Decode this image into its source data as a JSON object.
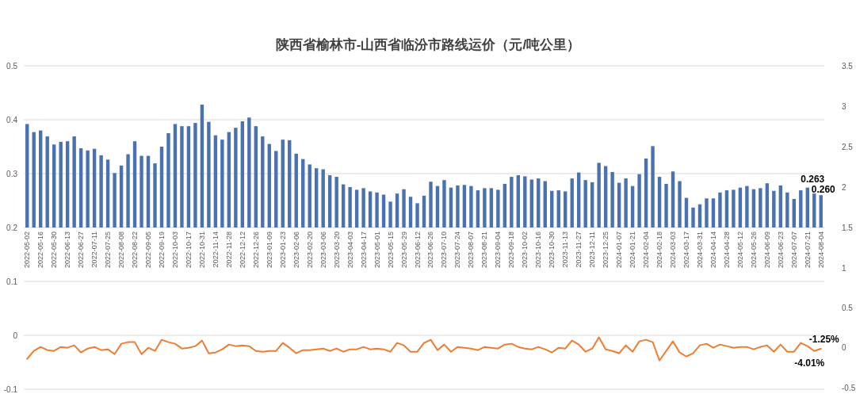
{
  "chart_data": [
    {
      "type": "bar",
      "title": "陕西省榆林市-山西省临汾市路线运价（元/吨公里）",
      "categories": [
        "2022-05-02",
        null,
        "2022-05-16",
        null,
        "2022-05-30",
        null,
        "2022-06-13",
        null,
        "2022-06-27",
        null,
        "2022-07-11",
        null,
        "2022-07-25",
        null,
        "2022-08-08",
        null,
        "2022-08-22",
        null,
        "2022-09-05",
        null,
        "2022-09-19",
        null,
        "2022-10-03",
        null,
        "2022-10-17",
        null,
        "2022-10-31",
        null,
        "2022-11-14",
        null,
        "2022-11-28",
        null,
        "2022-12-12",
        null,
        "2022-12-26",
        null,
        "2023-01-09",
        null,
        "2023-01-23",
        null,
        "2023-02-06",
        null,
        "2023-02-20",
        null,
        "2023-03-06",
        null,
        "2023-03-20",
        null,
        "2023-04-03",
        null,
        "2023-04-17",
        null,
        "2023-05-01",
        null,
        "2023-05-15",
        null,
        "2023-05-29",
        null,
        "2023-06-12",
        null,
        "2023-06-26",
        null,
        "2023-07-10",
        null,
        "2023-07-24",
        null,
        "2023-08-07",
        null,
        "2023-08-21",
        null,
        "2023-09-04",
        null,
        "2023-09-18",
        null,
        "2023-10-02",
        null,
        "2023-10-16",
        null,
        "2023-10-30",
        null,
        "2023-11-13",
        null,
        "2023-11-27",
        null,
        "2023-12-11",
        null,
        "2023-12-25",
        null,
        "2024-01-07",
        null,
        "2024-01-21",
        null,
        "2024-02-04",
        null,
        "2024-02-18",
        null,
        "2024-03-03",
        null,
        "2024-03-17",
        null,
        "2024-03-31",
        null,
        "2024-04-14",
        null,
        "2024-04-28",
        null,
        "2024-05-12",
        null,
        "2024-05-26",
        null,
        "2024-06-09",
        null,
        "2024-06-23",
        null,
        "2024-07-07",
        null,
        "2024-07-21",
        null,
        "2024-08-04"
      ],
      "series": [
        {
          "color": "#4a72b2",
          "values": [
            0.392,
            0.377,
            0.38,
            0.369,
            0.354,
            0.359,
            0.36,
            0.369,
            0.347,
            0.343,
            0.346,
            0.334,
            0.326,
            0.301,
            0.315,
            0.336,
            0.36,
            0.333,
            0.333,
            0.319,
            0.35,
            0.375,
            0.392,
            0.388,
            0.388,
            0.394,
            0.428,
            0.396,
            0.371,
            0.363,
            0.377,
            0.385,
            0.397,
            0.404,
            0.388,
            0.369,
            0.355,
            0.342,
            0.363,
            0.362,
            0.337,
            0.327,
            0.317,
            0.31,
            0.308,
            0.297,
            0.294,
            0.28,
            0.275,
            0.27,
            0.273,
            0.267,
            0.265,
            0.261,
            0.248,
            0.263,
            0.271,
            0.257,
            0.245,
            0.259,
            0.285,
            0.277,
            0.288,
            0.274,
            0.278,
            0.279,
            0.277,
            0.269,
            0.273,
            0.273,
            0.27,
            0.281,
            0.294,
            0.297,
            0.295,
            0.289,
            0.291,
            0.286,
            0.268,
            0.269,
            0.267,
            0.291,
            0.302,
            0.288,
            0.284,
            0.32,
            0.314,
            0.303,
            0.283,
            0.291,
            0.277,
            0.299,
            0.328,
            0.351,
            0.294,
            0.281,
            0.304,
            0.286,
            0.255,
            0.237,
            0.243,
            0.254,
            0.254,
            0.265,
            0.269,
            0.27,
            0.274,
            0.277,
            0.271,
            0.273,
            0.282,
            0.268,
            0.278,
            0.265,
            0.253,
            0.269,
            0.274,
            0.263,
            0.26
          ],
          "value_labels": [
            null,
            null,
            null,
            null,
            null,
            null,
            null,
            null,
            null,
            null,
            null,
            null,
            null,
            null,
            null,
            null,
            null,
            null,
            null,
            null,
            null,
            null,
            null,
            null,
            null,
            null,
            null,
            null,
            null,
            null,
            null,
            null,
            null,
            null,
            null,
            null,
            null,
            null,
            null,
            null,
            null,
            null,
            null,
            null,
            null,
            null,
            null,
            null,
            null,
            null,
            null,
            null,
            null,
            null,
            null,
            null,
            null,
            null,
            null,
            null,
            null,
            null,
            null,
            null,
            null,
            null,
            null,
            null,
            null,
            null,
            null,
            null,
            null,
            null,
            null,
            null,
            null,
            null,
            null,
            null,
            null,
            null,
            null,
            null,
            null,
            null,
            null,
            null,
            null,
            null,
            null,
            null,
            null,
            null,
            null,
            null,
            null,
            null,
            null,
            null,
            null,
            null,
            null,
            null,
            null,
            null,
            null,
            null,
            null,
            null,
            null,
            null,
            null,
            null,
            null,
            null,
            null,
            "0.263",
            "0.260"
          ]
        }
      ],
      "ylim": [
        0.2,
        0.5
      ],
      "yticks": [
        0.2,
        0.3,
        0.4,
        0.5
      ],
      "y2lim": [
        1.5,
        3.5
      ],
      "y2ticks": [
        1.5,
        2,
        2.5,
        3,
        3.5
      ],
      "grid": "y"
    },
    {
      "type": "line",
      "categories": [
        null,
        null,
        null,
        null,
        null,
        null,
        null,
        null,
        null,
        null,
        null,
        null,
        null,
        null,
        null,
        null,
        null,
        null,
        null,
        null,
        null,
        null,
        null,
        null,
        null,
        null,
        null,
        null,
        null,
        null,
        null,
        null,
        null,
        null,
        null,
        null,
        null,
        null,
        null,
        null,
        null,
        null,
        null,
        null,
        null,
        null,
        null,
        null,
        null,
        null,
        null,
        null,
        null,
        null,
        null,
        null,
        null,
        null,
        null,
        null,
        null,
        null,
        null,
        null,
        null,
        null,
        null,
        null,
        null,
        null,
        null,
        null,
        null,
        null,
        null,
        null,
        null,
        null,
        null,
        null,
        null,
        null,
        null,
        null,
        null,
        null,
        null,
        null,
        null,
        null,
        null,
        null,
        null,
        null,
        null,
        null,
        null,
        null,
        null,
        null,
        null,
        null,
        null,
        null,
        null,
        null,
        null,
        null,
        null,
        null,
        null,
        null,
        null,
        null,
        null,
        null,
        null,
        null,
        null
      ],
      "series": [
        {
          "color": "#ed7d31",
          "axis": "y2",
          "values": [
            -0.14,
            -0.04,
            0.01,
            -0.03,
            -0.04,
            0.01,
            0.0,
            0.03,
            -0.06,
            -0.01,
            0.01,
            -0.03,
            -0.02,
            -0.08,
            0.05,
            0.07,
            0.07,
            -0.08,
            0.0,
            -0.04,
            0.1,
            0.07,
            0.05,
            -0.01,
            0.0,
            0.02,
            0.09,
            -0.07,
            -0.06,
            -0.02,
            0.04,
            0.02,
            0.03,
            0.02,
            -0.04,
            -0.05,
            -0.04,
            -0.04,
            0.06,
            0.0,
            -0.07,
            -0.03,
            -0.03,
            -0.02,
            -0.01,
            -0.04,
            -0.01,
            -0.05,
            -0.02,
            -0.02,
            0.01,
            -0.02,
            -0.01,
            -0.02,
            -0.05,
            0.06,
            0.03,
            -0.05,
            -0.05,
            0.06,
            0.1,
            -0.03,
            0.04,
            -0.05,
            0.01,
            0.0,
            -0.01,
            -0.03,
            0.01,
            0.0,
            -0.01,
            0.04,
            0.05,
            0.01,
            -0.01,
            -0.02,
            0.01,
            -0.02,
            -0.06,
            0.0,
            -0.01,
            0.09,
            0.04,
            -0.05,
            -0.01,
            0.13,
            -0.02,
            -0.04,
            -0.07,
            0.03,
            -0.05,
            0.08,
            0.1,
            0.07,
            -0.16,
            -0.04,
            0.08,
            -0.06,
            -0.11,
            -0.07,
            0.03,
            0.05,
            0.0,
            0.04,
            0.02,
            0.0,
            0.01,
            0.01,
            -0.02,
            0.01,
            0.03,
            -0.05,
            0.04,
            -0.05,
            -0.05,
            0.06,
            0.02,
            -0.0401,
            -0.0125
          ],
          "value_labels": [
            null,
            null,
            null,
            null,
            null,
            null,
            null,
            null,
            null,
            null,
            null,
            null,
            null,
            null,
            null,
            null,
            null,
            null,
            null,
            null,
            null,
            null,
            null,
            null,
            null,
            null,
            null,
            null,
            null,
            null,
            null,
            null,
            null,
            null,
            null,
            null,
            null,
            null,
            null,
            null,
            null,
            null,
            null,
            null,
            null,
            null,
            null,
            null,
            null,
            null,
            null,
            null,
            null,
            null,
            null,
            null,
            null,
            null,
            null,
            null,
            null,
            null,
            null,
            null,
            null,
            null,
            null,
            null,
            null,
            null,
            null,
            null,
            null,
            null,
            null,
            null,
            null,
            null,
            null,
            null,
            null,
            null,
            null,
            null,
            null,
            null,
            null,
            null,
            null,
            null,
            null,
            null,
            null,
            null,
            null,
            null,
            null,
            null,
            null,
            null,
            null,
            null,
            null,
            null,
            null,
            null,
            null,
            null,
            null,
            null,
            null,
            null,
            null,
            null,
            null,
            null,
            null,
            "-4.01%",
            "-1.25%"
          ]
        }
      ],
      "ylim": [
        -0.1,
        0.1
      ],
      "yticks": [
        -0.1,
        0,
        0.1
      ],
      "y2lim": [
        -0.5,
        1
      ],
      "y2ticks": [
        -0.5,
        0,
        0.5,
        1
      ],
      "grid": "y"
    }
  ]
}
